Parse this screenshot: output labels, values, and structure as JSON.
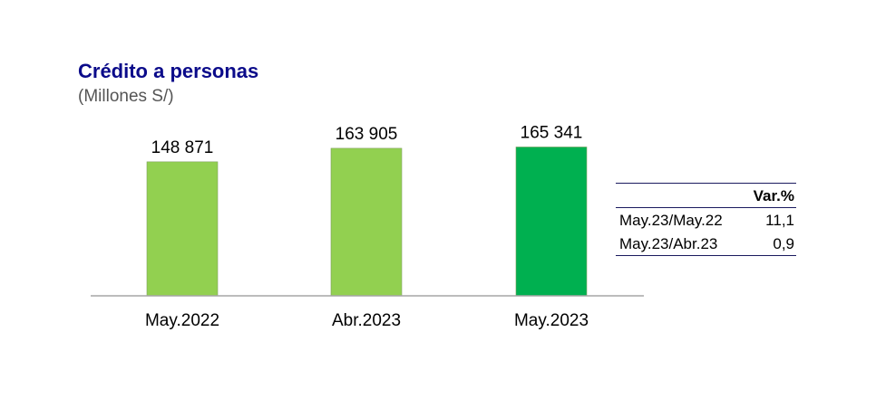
{
  "chart_data": {
    "type": "bar",
    "title": "Crédito a personas",
    "subtitle": "(Millones S/)",
    "categories": [
      "May.2022",
      "Abr.2023",
      "May.2023"
    ],
    "values": [
      148871,
      163905,
      165341
    ],
    "value_labels": [
      "148 871",
      "163 905",
      "165 341"
    ],
    "colors": [
      "#92d050",
      "#92d050",
      "#00b050"
    ],
    "grid": false
  },
  "variation_table": {
    "header": "Var.%",
    "rows": [
      {
        "label": "May.23/May.22",
        "value": "11,1"
      },
      {
        "label": "May.23/Abr.23",
        "value": "0,9"
      }
    ]
  }
}
